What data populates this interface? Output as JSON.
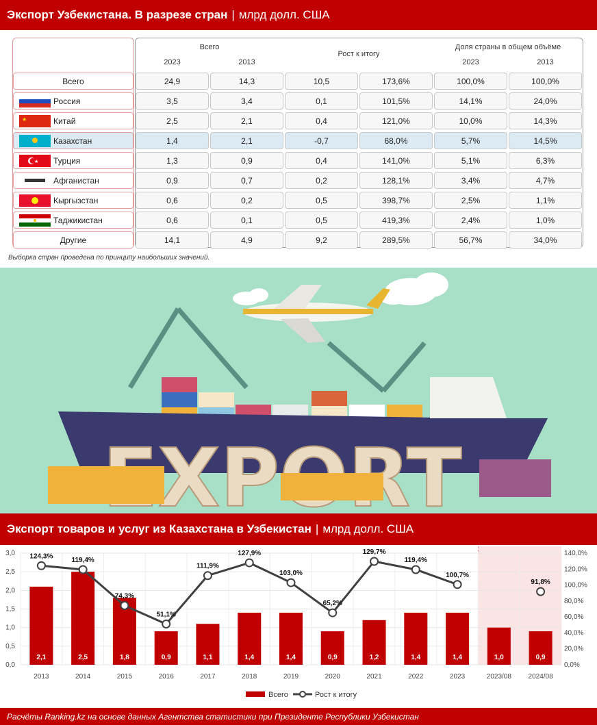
{
  "top_banner": {
    "title": "Экспорт Узбекистана. В разрезе стран",
    "sep": "|",
    "unit": "млрд долл. США"
  },
  "table": {
    "headers": {
      "total": "Всего",
      "growth": "Рост к итогу",
      "share": "Доля страны в общем объёме",
      "y2023": "2023",
      "y2013": "2013",
      "s2023": "2023",
      "s2013": "2013"
    },
    "rows": [
      {
        "name": "Всего",
        "flag": "none",
        "v2023": "24,9",
        "v2013": "14,3",
        "diff": "10,5",
        "growth": "173,6%",
        "s2023": "100,0%",
        "s2013": "100,0%"
      },
      {
        "name": "Россия",
        "flag": "russia",
        "v2023": "3,5",
        "v2013": "3,4",
        "diff": "0,1",
        "growth": "101,5%",
        "s2023": "14,1%",
        "s2013": "24,0%"
      },
      {
        "name": "Китай",
        "flag": "china",
        "v2023": "2,5",
        "v2013": "2,1",
        "diff": "0,4",
        "growth": "121,0%",
        "s2023": "10,0%",
        "s2013": "14,3%"
      },
      {
        "name": "Казахстан",
        "flag": "kazakhstan",
        "highlight": true,
        "v2023": "1,4",
        "v2013": "2,1",
        "diff": "-0,7",
        "growth": "68,0%",
        "s2023": "5,7%",
        "s2013": "14,5%"
      },
      {
        "name": "Турция",
        "flag": "turkey",
        "v2023": "1,3",
        "v2013": "0,9",
        "diff": "0,4",
        "growth": "141,0%",
        "s2023": "5,1%",
        "s2013": "6,3%"
      },
      {
        "name": "Афганистан",
        "flag": "afghanistan",
        "v2023": "0,9",
        "v2013": "0,7",
        "diff": "0,2",
        "growth": "128,1%",
        "s2023": "3,4%",
        "s2013": "4,7%"
      },
      {
        "name": "Кыргызстан",
        "flag": "kyrgyzstan",
        "v2023": "0,6",
        "v2013": "0,2",
        "diff": "0,5",
        "growth": "398,7%",
        "s2023": "2,5%",
        "s2013": "1,1%"
      },
      {
        "name": "Таджикистан",
        "flag": "tajikistan",
        "v2023": "0,6",
        "v2013": "0,1",
        "diff": "0,5",
        "growth": "419,3%",
        "s2023": "2,4%",
        "s2013": "1,0%"
      },
      {
        "name": "Другие",
        "flag": "none",
        "v2023": "14,1",
        "v2013": "4,9",
        "diff": "9,2",
        "growth": "289,5%",
        "s2023": "56,7%",
        "s2013": "34,0%"
      }
    ]
  },
  "note": "Выборка стран проведена по принципу наибольших значений.",
  "illustration": {
    "word": "EXPORT"
  },
  "mid_banner": {
    "title": "Экспорт товаров и услуг из Казахстана в Узбекистан",
    "sep": "|",
    "unit": "млрд долл. США"
  },
  "chart_data": {
    "type": "bar",
    "categories": [
      "2013",
      "2014",
      "2015",
      "2016",
      "2017",
      "2018",
      "2019",
      "2020",
      "2021",
      "2022",
      "2023",
      "2023/08",
      "2024/08"
    ],
    "series": [
      {
        "name": "Всего",
        "type": "bar",
        "axis": "left",
        "values": [
          2.1,
          2.5,
          1.8,
          0.9,
          1.1,
          1.4,
          1.4,
          0.9,
          1.2,
          1.4,
          1.4,
          1.0,
          0.9
        ],
        "labels": [
          "2,1",
          "2,5",
          "1,8",
          "0,9",
          "1,1",
          "1,4",
          "1,4",
          "0,9",
          "1,2",
          "1,4",
          "1,4",
          "1,0",
          "0,9"
        ],
        "color": "#c00000"
      },
      {
        "name": "Рост к итогу",
        "type": "line",
        "axis": "right",
        "values": [
          124.3,
          119.4,
          74.3,
          51.1,
          111.9,
          127.9,
          103.0,
          65.2,
          129.7,
          119.4,
          100.7,
          null,
          91.8
        ],
        "labels": [
          "124,3%",
          "119,4%",
          "74,3%",
          "51,1%",
          "111,9%",
          "127,9%",
          "103,0%",
          "65,2%",
          "129,7%",
          "119,4%",
          "100,7%",
          "",
          "91,8%"
        ],
        "color": "#404040"
      }
    ],
    "ylim": [
      0,
      3.0
    ],
    "y_ticks": [
      "0,0",
      "0,5",
      "1,0",
      "1,5",
      "2,0",
      "2,5",
      "3,0"
    ],
    "y2lim": [
      0,
      140
    ],
    "y2_ticks": [
      "0,0%",
      "20,0%",
      "40,0%",
      "60,0%",
      "80,0%",
      "100,0%",
      "120,0%",
      "140,0%"
    ],
    "shaded_categories": [
      "2023/08",
      "2024/08"
    ],
    "shade_color": "#fbe4e4",
    "legend_position": "bottom",
    "grid": true
  },
  "footer": "Расчёты Ranking.kz на основе данных Агентства статистики при Президенте Республики Узбекистан"
}
